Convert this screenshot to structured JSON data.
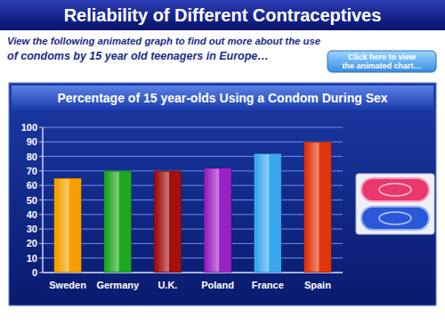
{
  "slide": {
    "title": "Reliability of Different Contraceptives",
    "intro": [
      "View the following animated graph to find out more about the use",
      "of condoms by 15 year old teenagers in Europe…"
    ],
    "button": [
      "Click here to view",
      "the animated chart…"
    ]
  },
  "chart_data": {
    "type": "bar",
    "title": "Percentage of 15 year-olds Using a Condom During Sex",
    "categories": [
      "Sweden",
      "Germany",
      "U.K.",
      "Poland",
      "France",
      "Spain"
    ],
    "values": [
      65,
      70,
      70,
      72,
      82,
      90
    ],
    "colors": [
      "#f5a000",
      "#1fa81f",
      "#a3100f",
      "#9a22c4",
      "#3aa8ee",
      "#e2340e"
    ],
    "ylim": [
      0,
      100
    ],
    "yticks": [
      0,
      10,
      20,
      30,
      40,
      50,
      60,
      70,
      80,
      90,
      100
    ],
    "grid": true
  }
}
